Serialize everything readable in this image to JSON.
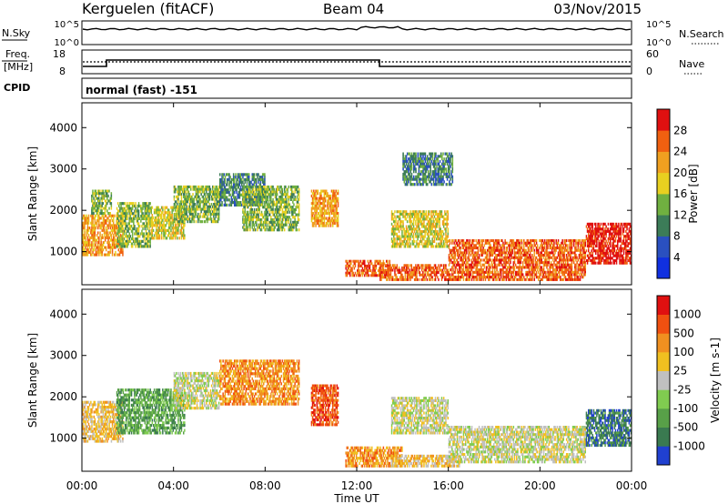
{
  "header": {
    "station": "Kerguelen (fitACF)",
    "beam": "Beam 04",
    "date": "03/Nov/2015"
  },
  "noise_panel": {
    "left_label": "N.Sky",
    "right_label": "N.Search",
    "left_ticks": [
      "10^5",
      "10^0"
    ],
    "right_ticks": [
      "10^5",
      "10^0"
    ]
  },
  "freq_panel": {
    "left_label_line1": "Freq.",
    "left_label_line2": "[MHz]",
    "right_label": "Nave",
    "left_ticks": [
      "18",
      "8"
    ],
    "right_ticks": [
      "60",
      "0"
    ]
  },
  "cpid": {
    "label": "CPID",
    "mode_text": "normal (fast) -151"
  },
  "time_axis": {
    "title": "Time UT",
    "tick_labels": [
      "00:00",
      "04:00",
      "08:00",
      "12:00",
      "16:00",
      "20:00",
      "00:00"
    ]
  },
  "chart_data": [
    {
      "type": "heatmap",
      "title": "Power",
      "ylabel": "Slant Range [km]",
      "xlabel": "Time UT",
      "xlim_hours": [
        0,
        24
      ],
      "ylim_km": [
        200,
        4600
      ],
      "y_ticks": [
        1000,
        2000,
        3000,
        4000
      ],
      "colorbar": {
        "label": "Power [dB]",
        "tick_labels": [
          "4",
          "8",
          "12",
          "16",
          "20",
          "24",
          "28"
        ],
        "colors": [
          "#1030e0",
          "#2a50c0",
          "#3c7c58",
          "#70b040",
          "#e8d020",
          "#f0a020",
          "#f06010",
          "#e01010"
        ]
      },
      "echo_regions": [
        {
          "t0": 0.0,
          "t1": 1.8,
          "r0": 900,
          "r1": 1900,
          "level": 5
        },
        {
          "t0": 0.4,
          "t1": 1.3,
          "r0": 1900,
          "r1": 2500,
          "level": 3
        },
        {
          "t0": 1.5,
          "t1": 3.0,
          "r0": 1100,
          "r1": 2200,
          "level": 3
        },
        {
          "t0": 3.0,
          "t1": 4.5,
          "r0": 1300,
          "r1": 2100,
          "level": 4
        },
        {
          "t0": 4.0,
          "t1": 6.0,
          "r0": 1700,
          "r1": 2600,
          "level": 3
        },
        {
          "t0": 6.0,
          "t1": 8.0,
          "r0": 2100,
          "r1": 2900,
          "level": 2
        },
        {
          "t0": 7.0,
          "t1": 9.5,
          "r0": 1500,
          "r1": 2600,
          "level": 3
        },
        {
          "t0": 10.0,
          "t1": 11.2,
          "r0": 1600,
          "r1": 2500,
          "level": 5
        },
        {
          "t0": 11.5,
          "t1": 13.5,
          "r0": 400,
          "r1": 800,
          "level": 6
        },
        {
          "t0": 13.0,
          "t1": 16.0,
          "r0": 300,
          "r1": 700,
          "level": 6
        },
        {
          "t0": 13.5,
          "t1": 16.0,
          "r0": 1100,
          "r1": 2000,
          "level": 4
        },
        {
          "t0": 14.0,
          "t1": 16.2,
          "r0": 2600,
          "r1": 3400,
          "level": 2
        },
        {
          "t0": 16.0,
          "t1": 22.0,
          "r0": 300,
          "r1": 1300,
          "level": 6
        },
        {
          "t0": 22.0,
          "t1": 24.0,
          "r0": 700,
          "r1": 1700,
          "level": 7
        }
      ]
    },
    {
      "type": "heatmap",
      "title": "Velocity",
      "ylabel": "Slant Range [km]",
      "xlabel": "Time UT",
      "xlim_hours": [
        0,
        24
      ],
      "ylim_km": [
        200,
        4600
      ],
      "y_ticks": [
        1000,
        2000,
        3000,
        4000
      ],
      "colorbar": {
        "label": "Velocity [m s-1]",
        "tick_labels": [
          "1000",
          "500",
          "100",
          "25",
          "-25",
          "-100",
          "-500",
          "-1000"
        ],
        "colors": [
          "#2040d0",
          "#3a7a50",
          "#58a048",
          "#80cc50",
          "#c0c0c0",
          "#f0c020",
          "#f09020",
          "#f05010",
          "#e01010"
        ]
      },
      "echo_regions": [
        {
          "t0": 0.0,
          "t1": 1.8,
          "r0": 900,
          "r1": 1900,
          "level": 5
        },
        {
          "t0": 1.5,
          "t1": 4.5,
          "r0": 1100,
          "r1": 2200,
          "level": 2
        },
        {
          "t0": 4.0,
          "t1": 6.0,
          "r0": 1700,
          "r1": 2600,
          "level": 4
        },
        {
          "t0": 6.0,
          "t1": 9.5,
          "r0": 1800,
          "r1": 2900,
          "level": 6
        },
        {
          "t0": 10.0,
          "t1": 11.2,
          "r0": 1300,
          "r1": 2300,
          "level": 7
        },
        {
          "t0": 11.5,
          "t1": 14.0,
          "r0": 300,
          "r1": 800,
          "level": 6
        },
        {
          "t0": 13.5,
          "t1": 16.5,
          "r0": 300,
          "r1": 600,
          "level": 5
        },
        {
          "t0": 13.5,
          "t1": 16.0,
          "r0": 1100,
          "r1": 2000,
          "level": 4
        },
        {
          "t0": 16.0,
          "t1": 22.0,
          "r0": 400,
          "r1": 1300,
          "level": 4
        },
        {
          "t0": 22.0,
          "t1": 24.0,
          "r0": 800,
          "r1": 1700,
          "level": 1
        }
      ]
    }
  ]
}
